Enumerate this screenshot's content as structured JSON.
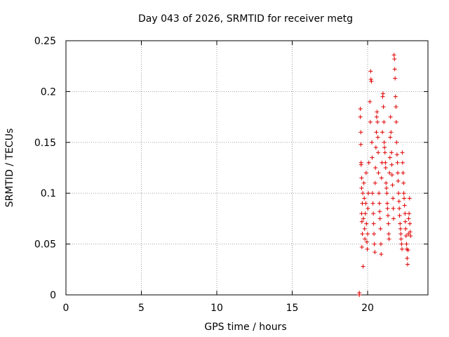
{
  "chart_data": {
    "type": "scatter",
    "title": "Day 043 of 2026, SRMTID for receiver metg",
    "xlabel": "GPS time / hours",
    "ylabel": "SRMTID / TECUs",
    "xlim": [
      0,
      24
    ],
    "ylim": [
      0,
      0.25
    ],
    "x_ticks": [
      0,
      5,
      10,
      15,
      20
    ],
    "y_ticks": [
      0,
      0.05,
      0.1,
      0.15,
      0.2,
      0.25
    ],
    "x_tick_labels": [
      "0",
      "5",
      "10",
      "15",
      "20"
    ],
    "y_tick_labels": [
      "0",
      "0.05",
      "0.1",
      "0.15",
      "0.2",
      "0.25"
    ],
    "grid": true,
    "marker": "plus",
    "series": [
      {
        "name": "metg",
        "color": "#e00000",
        "points": [
          [
            19.45,
            0.0
          ],
          [
            19.45,
            0.002
          ],
          [
            19.52,
            0.183
          ],
          [
            19.52,
            0.175
          ],
          [
            19.55,
            0.16
          ],
          [
            19.55,
            0.148
          ],
          [
            19.57,
            0.13
          ],
          [
            19.57,
            0.128
          ],
          [
            19.6,
            0.115
          ],
          [
            19.6,
            0.105
          ],
          [
            19.6,
            0.08
          ],
          [
            19.62,
            0.072
          ],
          [
            19.62,
            0.047
          ],
          [
            19.65,
            0.06
          ],
          [
            19.65,
            0.09
          ],
          [
            19.68,
            0.1
          ],
          [
            19.7,
            0.028
          ],
          [
            19.72,
            0.075
          ],
          [
            19.75,
            0.11
          ],
          [
            19.78,
            0.095
          ],
          [
            19.8,
            0.065
          ],
          [
            19.82,
            0.055
          ],
          [
            19.85,
            0.08
          ],
          [
            19.88,
            0.09
          ],
          [
            19.9,
            0.12
          ],
          [
            19.92,
            0.07
          ],
          [
            19.95,
            0.052
          ],
          [
            19.98,
            0.045
          ],
          [
            20.0,
            0.06
          ],
          [
            20.02,
            0.085
          ],
          [
            20.05,
            0.1
          ],
          [
            20.08,
            0.13
          ],
          [
            20.15,
            0.19
          ],
          [
            20.18,
            0.17
          ],
          [
            20.2,
            0.22
          ],
          [
            20.22,
            0.212
          ],
          [
            20.25,
            0.21
          ],
          [
            20.28,
            0.15
          ],
          [
            20.3,
            0.135
          ],
          [
            20.32,
            0.1
          ],
          [
            20.35,
            0.09
          ],
          [
            20.38,
            0.08
          ],
          [
            20.4,
            0.07
          ],
          [
            20.42,
            0.06
          ],
          [
            20.45,
            0.05
          ],
          [
            20.48,
            0.042
          ],
          [
            20.5,
            0.11
          ],
          [
            20.52,
            0.125
          ],
          [
            20.55,
            0.145
          ],
          [
            20.58,
            0.16
          ],
          [
            20.6,
            0.175
          ],
          [
            20.62,
            0.18
          ],
          [
            20.65,
            0.17
          ],
          [
            20.68,
            0.155
          ],
          [
            20.7,
            0.14
          ],
          [
            20.72,
            0.12
          ],
          [
            20.75,
            0.1
          ],
          [
            20.78,
            0.09
          ],
          [
            20.8,
            0.082
          ],
          [
            20.82,
            0.075
          ],
          [
            20.85,
            0.065
          ],
          [
            20.88,
            0.05
          ],
          [
            20.9,
            0.04
          ],
          [
            20.92,
            0.115
          ],
          [
            20.95,
            0.13
          ],
          [
            20.98,
            0.16
          ],
          [
            21.0,
            0.195
          ],
          [
            21.02,
            0.198
          ],
          [
            21.05,
            0.185
          ],
          [
            21.08,
            0.17
          ],
          [
            21.1,
            0.15
          ],
          [
            21.12,
            0.145
          ],
          [
            21.15,
            0.14
          ],
          [
            21.18,
            0.13
          ],
          [
            21.2,
            0.125
          ],
          [
            21.22,
            0.11
          ],
          [
            21.25,
            0.105
          ],
          [
            21.28,
            0.1
          ],
          [
            21.3,
            0.09
          ],
          [
            21.32,
            0.085
          ],
          [
            21.35,
            0.078
          ],
          [
            21.38,
            0.07
          ],
          [
            21.4,
            0.06
          ],
          [
            21.42,
            0.055
          ],
          [
            21.45,
            0.12
          ],
          [
            21.48,
            0.135
          ],
          [
            21.5,
            0.155
          ],
          [
            21.52,
            0.175
          ],
          [
            21.55,
            0.16
          ],
          [
            21.58,
            0.14
          ],
          [
            21.6,
            0.128
          ],
          [
            21.62,
            0.118
          ],
          [
            21.65,
            0.108
          ],
          [
            21.68,
            0.095
          ],
          [
            21.7,
            0.085
          ],
          [
            21.72,
            0.075
          ],
          [
            21.75,
            0.236
          ],
          [
            21.78,
            0.232
          ],
          [
            21.8,
            0.222
          ],
          [
            21.82,
            0.213
          ],
          [
            21.85,
            0.195
          ],
          [
            21.88,
            0.185
          ],
          [
            21.9,
            0.17
          ],
          [
            21.92,
            0.15
          ],
          [
            21.95,
            0.138
          ],
          [
            21.98,
            0.13
          ],
          [
            22.0,
            0.12
          ],
          [
            22.02,
            0.112
          ],
          [
            22.05,
            0.1
          ],
          [
            22.08,
            0.092
          ],
          [
            22.1,
            0.085
          ],
          [
            22.12,
            0.078
          ],
          [
            22.15,
            0.07
          ],
          [
            22.18,
            0.065
          ],
          [
            22.2,
            0.06
          ],
          [
            22.22,
            0.055
          ],
          [
            22.25,
            0.05
          ],
          [
            22.28,
            0.045
          ],
          [
            22.3,
            0.14
          ],
          [
            22.32,
            0.13
          ],
          [
            22.35,
            0.12
          ],
          [
            22.38,
            0.11
          ],
          [
            22.4,
            0.1
          ],
          [
            22.42,
            0.095
          ],
          [
            22.45,
            0.088
          ],
          [
            22.48,
            0.08
          ],
          [
            22.5,
            0.072
          ],
          [
            22.52,
            0.065
          ],
          [
            22.55,
            0.058
          ],
          [
            22.58,
            0.05
          ],
          [
            22.6,
            0.045
          ],
          [
            22.62,
            0.036
          ],
          [
            22.65,
            0.03
          ],
          [
            22.68,
            0.044
          ],
          [
            22.7,
            0.06
          ],
          [
            22.72,
            0.075
          ],
          [
            22.75,
            0.08
          ],
          [
            22.78,
            0.095
          ],
          [
            22.8,
            0.07
          ],
          [
            22.82,
            0.062
          ],
          [
            22.85,
            0.058
          ]
        ]
      }
    ]
  }
}
